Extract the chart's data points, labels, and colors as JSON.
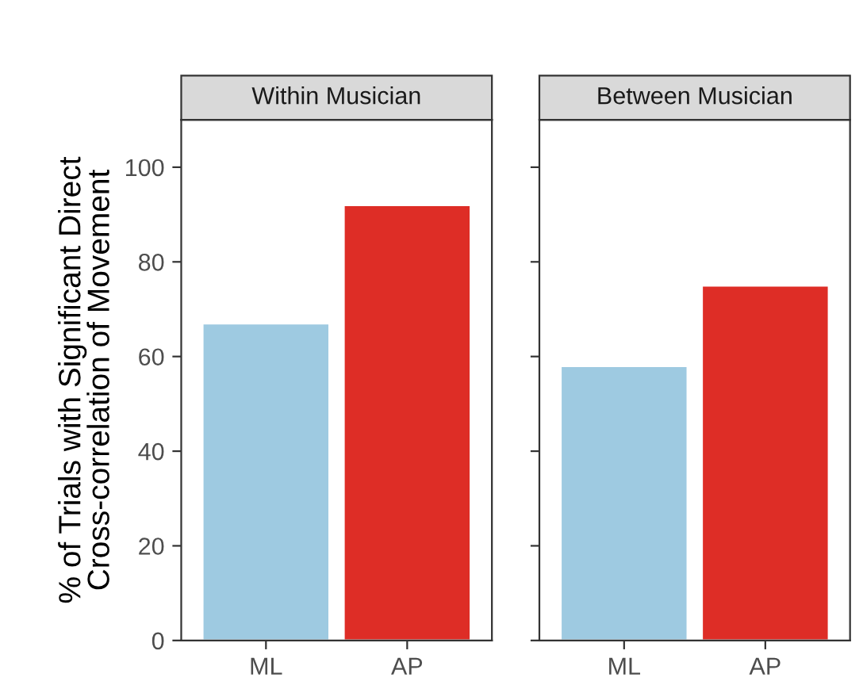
{
  "chart_data": [
    {
      "type": "bar",
      "title": "Within Musician",
      "ylabel": "% of Trials with Significant Direct\nCross-correlation of Movement",
      "categories": [
        "ML",
        "AP"
      ],
      "values": [
        67,
        92
      ],
      "colors": [
        "#9ecae1",
        "#de2d26"
      ],
      "ylim": [
        0,
        110
      ],
      "yticks": [
        0,
        20,
        40,
        60,
        80,
        100
      ],
      "grid": false,
      "legend": false
    },
    {
      "type": "bar",
      "title": "Between Musician",
      "categories": [
        "ML",
        "AP"
      ],
      "values": [
        58,
        75
      ],
      "colors": [
        "#9ecae1",
        "#de2d26"
      ],
      "ylim": [
        0,
        110
      ],
      "yticks": [
        0,
        20,
        40,
        60,
        80,
        100
      ],
      "grid": false,
      "legend": false,
      "tick_labels": "x"
    }
  ]
}
